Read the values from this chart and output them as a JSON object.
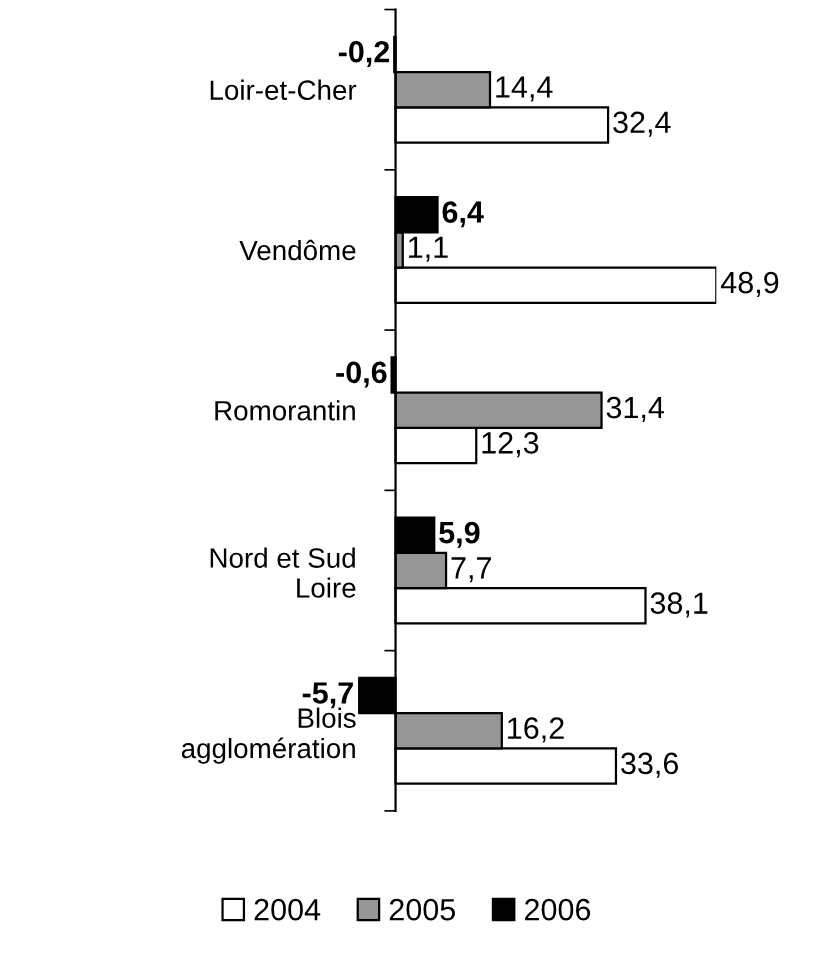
{
  "chart_data": {
    "type": "bar",
    "orientation": "horizontal",
    "categories": [
      "Loir-et-Cher",
      "Vendôme",
      "Romorantin",
      "Nord et Sud Loire",
      "Blois agglomération"
    ],
    "series": [
      {
        "name": "2004",
        "color": "#ffffff",
        "values": [
          32.4,
          48.9,
          12.3,
          38.1,
          33.6
        ],
        "value_labels": [
          "32,4",
          "48,9",
          "12,3",
          "38,1",
          "33,6"
        ]
      },
      {
        "name": "2005",
        "color": "#969696",
        "values": [
          14.4,
          1.1,
          31.4,
          7.7,
          16.2
        ],
        "value_labels": [
          "14,4",
          "1,1",
          "31,4",
          "7,7",
          "16,2"
        ]
      },
      {
        "name": "2006",
        "color": "#000000",
        "values": [
          -0.2,
          6.4,
          -0.6,
          5.9,
          -5.7
        ],
        "value_labels": [
          "-0,2",
          "6,4",
          "-0,6",
          "5,9",
          "-5,7"
        ]
      }
    ],
    "legend": "bottom",
    "grid": false
  }
}
